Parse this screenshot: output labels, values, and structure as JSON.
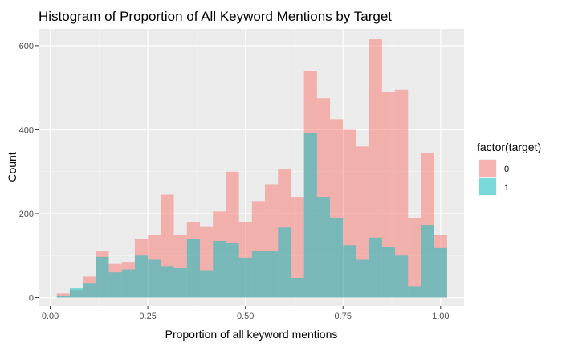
{
  "chart_data": {
    "type": "bar",
    "title": "Histogram of Proportion of All Keyword Mentions by Target",
    "xlabel": "Proportion of all keyword mentions",
    "ylabel": "Count",
    "xlim": [
      -0.03,
      1.06
    ],
    "ylim": [
      -20,
      640
    ],
    "x_ticks": [
      {
        "value": 0.0,
        "label": "0.00"
      },
      {
        "value": 0.25,
        "label": "0.25"
      },
      {
        "value": 0.5,
        "label": "0.50"
      },
      {
        "value": 0.75,
        "label": "0.75"
      },
      {
        "value": 1.0,
        "label": "1.00"
      }
    ],
    "y_ticks": [
      {
        "value": 0,
        "label": "0"
      },
      {
        "value": 200,
        "label": "200"
      },
      {
        "value": 400,
        "label": "400"
      },
      {
        "value": 600,
        "label": "600"
      }
    ],
    "x_minor_gridlines": [
      0.125,
      0.375,
      0.625,
      0.875
    ],
    "y_minor_gridlines": [
      100,
      300,
      500
    ],
    "bin_width": 0.0333,
    "bin_centers": [
      0.0333,
      0.0667,
      0.1,
      0.1333,
      0.1667,
      0.2,
      0.2333,
      0.2667,
      0.3,
      0.3333,
      0.3667,
      0.4,
      0.4333,
      0.4667,
      0.5,
      0.5333,
      0.5667,
      0.6,
      0.6333,
      0.6667,
      0.7,
      0.7333,
      0.7667,
      0.8,
      0.8333,
      0.8667,
      0.9,
      0.9333,
      0.9667,
      1.0
    ],
    "series": [
      {
        "name": "0",
        "color": "#f8766d",
        "values": [
          10,
          18,
          50,
          110,
          80,
          85,
          140,
          150,
          245,
          150,
          180,
          170,
          205,
          300,
          180,
          230,
          270,
          305,
          240,
          540,
          475,
          425,
          400,
          360,
          615,
          490,
          495,
          190,
          345,
          150
        ]
      },
      {
        "name": "1",
        "color": "#00bfc4",
        "values": [
          5,
          22,
          35,
          97,
          60,
          67,
          100,
          90,
          75,
          70,
          140,
          65,
          135,
          130,
          95,
          110,
          110,
          167,
          47,
          393,
          240,
          190,
          125,
          90,
          143,
          120,
          100,
          27,
          173,
          118
        ]
      }
    ],
    "legend": {
      "title": "factor(target)",
      "position": "right"
    },
    "grid": true
  }
}
